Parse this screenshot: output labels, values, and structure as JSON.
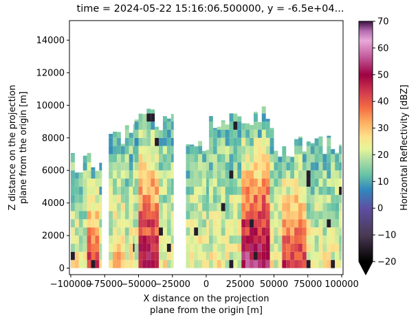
{
  "chart_data": {
    "type": "heatmap",
    "title": "time = 2024-05-22 15:16:06.500000, y = -6.5e+04...",
    "xlabel": [
      "X distance on the projection",
      "plane from the origin [m]"
    ],
    "ylabel": [
      "Z distance on the projection",
      "plane from the origin [m]"
    ],
    "xlim": [
      -101000,
      101000
    ],
    "ylim": [
      -400,
      15200
    ],
    "x_ticks": [
      -100000,
      -75000,
      -50000,
      -25000,
      0,
      25000,
      50000,
      75000,
      100000
    ],
    "x_tick_labels": [
      "−100000",
      "−75000",
      "−50000",
      "−25000",
      "0",
      "25000",
      "50000",
      "75000",
      "100000"
    ],
    "y_ticks": [
      0,
      2000,
      4000,
      6000,
      8000,
      10000,
      12000,
      14000
    ],
    "y_tick_labels": [
      "0",
      "2000",
      "4000",
      "6000",
      "8000",
      "10000",
      "12000",
      "14000"
    ],
    "colorbar": {
      "label": "Horizontal Reflectivity [dBZ]",
      "range": [
        -20,
        70
      ],
      "ticks": [
        -20,
        -10,
        0,
        10,
        20,
        30,
        40,
        50,
        60,
        70
      ],
      "tick_labels": [
        "−20",
        "−10",
        "0",
        "10",
        "20",
        "30",
        "40",
        "50",
        "60",
        "70"
      ],
      "extend": "min"
    },
    "echo_columns": [
      {
        "x": [
          -100000,
          -77000
        ],
        "top_z": 7200,
        "core_x": [
          -90000,
          -82000
        ],
        "core_dbz": 45
      },
      {
        "x": [
          -72000,
          -53000
        ],
        "top_z": 9000,
        "core_x": [
          -70000,
          -62000
        ],
        "core_dbz": 30
      },
      {
        "x": [
          -53000,
          -24000
        ],
        "top_z": 9800,
        "core_x": [
          -50000,
          -38000
        ],
        "core_dbz": 50
      },
      {
        "x": [
          -15000,
          2000
        ],
        "top_z": 8500,
        "core_x": [
          -8000,
          0
        ],
        "core_dbz": 25
      },
      {
        "x": [
          2000,
          50000
        ],
        "top_z": 10000,
        "core_x": [
          25000,
          45000
        ],
        "core_dbz": 55
      },
      {
        "x": [
          50000,
          100000
        ],
        "top_z": 8200,
        "core_x": [
          55000,
          72000
        ],
        "core_dbz": 45
      }
    ]
  }
}
